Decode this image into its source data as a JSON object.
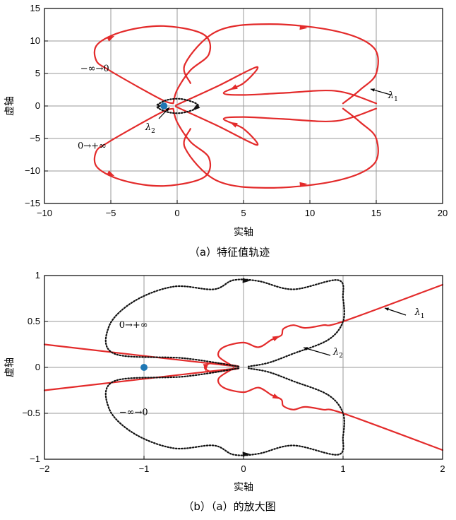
{
  "chart_data": [
    {
      "type": "line",
      "caption": "（a）特征值轨迹",
      "xlabel": "实轴",
      "ylabel": "虚轴",
      "xlim": [
        -10,
        20
      ],
      "ylim": [
        -15,
        15
      ],
      "xticks": [
        -10,
        -5,
        0,
        5,
        10,
        15,
        20
      ],
      "yticks": [
        -15,
        -10,
        -5,
        0,
        5,
        10,
        15
      ],
      "xtick_labels": [
        "−10",
        "−5",
        "0",
        "5",
        "10",
        "15",
        "20"
      ],
      "ytick_labels": [
        "−15",
        "−10",
        "−5",
        "0",
        "5",
        "10",
        "15"
      ],
      "grid": true,
      "colors": {
        "lambda1": "#e32b2b",
        "lambda2": "#111111",
        "point": "#1f77b4"
      },
      "series": [
        {
          "name": "λ1",
          "style": "solid",
          "points": [
            [
              -0.3,
              0.4
            ],
            [
              -1,
              0.8
            ],
            [
              -3,
              3
            ],
            [
              -5.2,
              5.6
            ],
            [
              -6.1,
              7
            ],
            [
              -6,
              9.5
            ],
            [
              -4,
              11.5
            ],
            [
              -1,
              12.3
            ],
            [
              2,
              11
            ],
            [
              2.4,
              8
            ],
            [
              1,
              5.5
            ],
            [
              0,
              2.5
            ],
            [
              -0.3,
              0.4
            ]
          ]
        },
        {
          "name": "λ1",
          "style": "solid",
          "points": [
            [
              -0.1,
              0.1
            ],
            [
              3,
              3
            ],
            [
              6,
              6
            ],
            [
              5,
              3.5
            ],
            [
              3.5,
              2
            ],
            [
              5,
              1.7
            ],
            [
              8,
              2
            ],
            [
              12,
              2.3
            ],
            [
              15,
              0.4
            ]
          ]
        },
        {
          "name": "λ1",
          "style": "solid",
          "points": [
            [
              1,
              3.5
            ],
            [
              0.6,
              6.5
            ],
            [
              3,
              11.5
            ],
            [
              7,
              12.6
            ],
            [
              12,
              11.5
            ],
            [
              14.8,
              9
            ],
            [
              15,
              5
            ],
            [
              13.8,
              2.5
            ],
            [
              12.5,
              0.4
            ]
          ]
        },
        {
          "name": "λ1",
          "style": "solid",
          "points": [
            [
              -0.3,
              -0.4
            ],
            [
              -1,
              -0.8
            ],
            [
              -3,
              -3
            ],
            [
              -5.2,
              -5.6
            ],
            [
              -6.1,
              -7
            ],
            [
              -6,
              -9.5
            ],
            [
              -4,
              -11.5
            ],
            [
              -1,
              -12.3
            ],
            [
              2,
              -11
            ],
            [
              2.4,
              -8
            ],
            [
              1,
              -5.5
            ],
            [
              0,
              -2.5
            ],
            [
              -0.3,
              -0.4
            ]
          ]
        },
        {
          "name": "λ1",
          "style": "solid",
          "points": [
            [
              -0.1,
              -0.1
            ],
            [
              3,
              -3
            ],
            [
              6,
              -6
            ],
            [
              5,
              -3.5
            ],
            [
              3.5,
              -2
            ],
            [
              5,
              -1.7
            ],
            [
              8,
              -2
            ],
            [
              12,
              -2.3
            ],
            [
              15,
              -0.4
            ]
          ]
        },
        {
          "name": "λ1",
          "style": "solid",
          "points": [
            [
              1,
              -3.5
            ],
            [
              0.6,
              -6.5
            ],
            [
              3,
              -11.5
            ],
            [
              7,
              -12.6
            ],
            [
              12,
              -11.5
            ],
            [
              14.8,
              -9
            ],
            [
              15,
              -5
            ],
            [
              13.8,
              -2.5
            ],
            [
              12.5,
              -0.4
            ]
          ]
        },
        {
          "name": "λ2",
          "style": "dotted",
          "points": [
            [
              -1.5,
              0.2
            ],
            [
              -0.8,
              0.9
            ],
            [
              0.2,
              1.1
            ],
            [
              1.2,
              0.6
            ],
            [
              1.6,
              0
            ],
            [
              1.2,
              -0.6
            ],
            [
              0.2,
              -1.1
            ],
            [
              -0.8,
              -0.9
            ],
            [
              -1.5,
              -0.2
            ],
            [
              -1.2,
              0
            ],
            [
              -1.5,
              0.2
            ]
          ]
        }
      ],
      "markers": [
        {
          "x": -1,
          "y": 0
        }
      ],
      "annotations": [
        {
          "text": "−∞→0",
          "x": -7.3,
          "y": 5.3
        },
        {
          "text": "0→+∞",
          "x": -7.5,
          "y": -6.6
        }
      ],
      "series_labels": [
        {
          "base": "λ",
          "sub": "1",
          "x": 15.9,
          "y": 1.2
        },
        {
          "base": "λ",
          "sub": "2",
          "x": -2.4,
          "y": -3.7
        }
      ]
    },
    {
      "type": "line",
      "caption": "（b）（a）的放大图",
      "xlabel": "实轴",
      "ylabel": "虚轴",
      "xlim": [
        -2,
        2
      ],
      "ylim": [
        -1,
        1
      ],
      "xticks": [
        -2,
        -1,
        0,
        1,
        2
      ],
      "yticks": [
        -1,
        -0.5,
        0,
        0.5,
        1
      ],
      "xtick_labels": [
        "−2",
        "−1",
        "0",
        "1",
        "2"
      ],
      "ytick_labels": [
        "−1",
        "−0.5",
        "0",
        "0.5",
        "1"
      ],
      "grid": true,
      "colors": {
        "lambda1": "#e32b2b",
        "lambda2": "#111111",
        "point": "#1f77b4"
      },
      "series": [
        {
          "name": "λ1",
          "style": "solid",
          "points": [
            [
              -2,
              0.25
            ],
            [
              -0.15,
              0.02
            ],
            [
              -0.3,
              0.05
            ],
            [
              -0.38,
              0.02
            ],
            [
              -0.38,
              -0.02
            ],
            [
              -0.3,
              -0.05
            ],
            [
              -0.15,
              -0.02
            ],
            [
              -2,
              -0.25
            ]
          ]
        },
        {
          "name": "λ1",
          "style": "solid",
          "points": [
            [
              -0.1,
              0.01
            ],
            [
              -0.25,
              0.12
            ],
            [
              -0.2,
              0.22
            ],
            [
              0,
              0.27
            ],
            [
              0.15,
              0.22
            ],
            [
              0.28,
              0.3
            ],
            [
              0.38,
              0.35
            ],
            [
              0.4,
              0.42
            ],
            [
              0.5,
              0.46
            ],
            [
              0.62,
              0.43
            ],
            [
              0.8,
              0.46
            ],
            [
              1,
              0.5
            ],
            [
              2,
              0.9
            ]
          ]
        },
        {
          "name": "λ1",
          "style": "solid",
          "points": [
            [
              -0.1,
              -0.01
            ],
            [
              -0.25,
              -0.12
            ],
            [
              -0.2,
              -0.22
            ],
            [
              0,
              -0.27
            ],
            [
              0.15,
              -0.22
            ],
            [
              0.28,
              -0.3
            ],
            [
              0.38,
              -0.35
            ],
            [
              0.4,
              -0.42
            ],
            [
              0.5,
              -0.46
            ],
            [
              0.62,
              -0.43
            ],
            [
              0.8,
              -0.46
            ],
            [
              1,
              -0.5
            ],
            [
              2,
              -0.9
            ]
          ]
        },
        {
          "name": "λ2",
          "style": "dotted",
          "points": [
            [
              -0.05,
              0.01
            ],
            [
              -0.6,
              0.1
            ],
            [
              -1.3,
              0.15
            ],
            [
              -1.35,
              0.45
            ],
            [
              -1.1,
              0.72
            ],
            [
              -0.7,
              0.88
            ],
            [
              -0.3,
              0.85
            ],
            [
              -0.1,
              0.95
            ],
            [
              0.15,
              0.94
            ],
            [
              0.5,
              0.85
            ],
            [
              0.95,
              0.95
            ],
            [
              1.0,
              0.75
            ],
            [
              1.0,
              0.5
            ],
            [
              0.85,
              0.3
            ],
            [
              0.5,
              0.15
            ],
            [
              0.25,
              0.05
            ],
            [
              0.05,
              0.01
            ]
          ]
        },
        {
          "name": "λ2",
          "style": "dotted",
          "points": [
            [
              -0.05,
              -0.01
            ],
            [
              -0.6,
              -0.1
            ],
            [
              -1.3,
              -0.15
            ],
            [
              -1.35,
              -0.45
            ],
            [
              -1.1,
              -0.72
            ],
            [
              -0.7,
              -0.88
            ],
            [
              -0.3,
              -0.85
            ],
            [
              -0.1,
              -0.95
            ],
            [
              0.15,
              -0.94
            ],
            [
              0.5,
              -0.85
            ],
            [
              0.95,
              -0.95
            ],
            [
              1.0,
              -0.75
            ],
            [
              1.0,
              -0.5
            ],
            [
              0.85,
              -0.3
            ],
            [
              0.5,
              -0.15
            ],
            [
              0.25,
              -0.05
            ],
            [
              0.05,
              -0.01
            ]
          ]
        }
      ],
      "markers": [
        {
          "x": -1,
          "y": 0
        }
      ],
      "annotations": [
        {
          "text": "0→+∞",
          "x": -1.25,
          "y": 0.43
        },
        {
          "text": "−∞→0",
          "x": -1.25,
          "y": -0.52
        }
      ],
      "series_labels": [
        {
          "base": "λ",
          "sub": "1",
          "x": 1.72,
          "y": 0.57
        },
        {
          "base": "λ",
          "sub": "2",
          "x": 0.9,
          "y": 0.14
        }
      ]
    }
  ]
}
